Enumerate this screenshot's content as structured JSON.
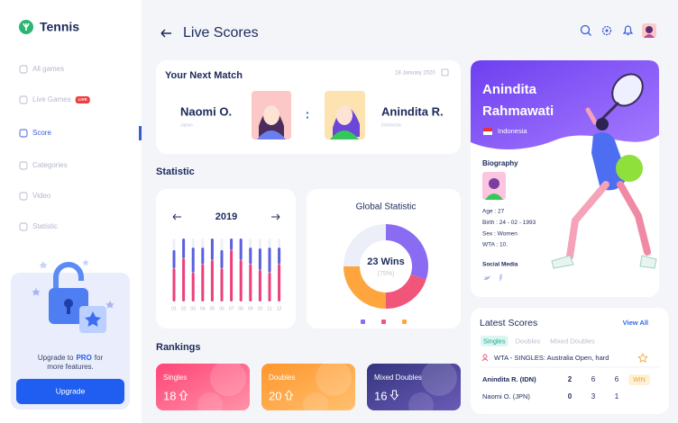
{
  "sidebar": {
    "brand": "Tennis",
    "nav": [
      {
        "label": "All games"
      },
      {
        "label": "Live Games",
        "badge": "LIVE"
      },
      {
        "label": "Score",
        "active": true
      },
      {
        "label": "Categories"
      },
      {
        "label": "Video"
      },
      {
        "label": "Statistic"
      }
    ],
    "upgrade": {
      "lines": [
        [
          "Upgrade to",
          "PRO",
          "for"
        ],
        [
          "more features."
        ]
      ],
      "button": "Upgrade"
    }
  },
  "header": {
    "title": "Live Scores"
  },
  "next_match": {
    "title": "Your Next Match",
    "date": "18 January 2020",
    "separator": ":",
    "players": [
      {
        "name": "Naomi O.",
        "country": "Japan"
      },
      {
        "name": "Anindita R.",
        "country": "Indonesia"
      }
    ]
  },
  "statistic": {
    "title": "Statistic",
    "monthly": {
      "type": "bar",
      "year": "2019",
      "categories": [
        "01",
        "02",
        "03",
        "04",
        "05",
        "06",
        "07",
        "08",
        "09",
        "10",
        "11",
        "12"
      ],
      "series": [
        {
          "color": "#ee3f7d",
          "values": [
            40,
            52,
            35,
            45,
            50,
            40,
            62,
            50,
            45,
            38,
            35,
            45
          ]
        },
        {
          "color": "#5b5fe0",
          "values": [
            22,
            24,
            30,
            20,
            26,
            22,
            14,
            26,
            20,
            26,
            30,
            20
          ]
        }
      ]
    },
    "global": {
      "type": "pie",
      "title": "Global Statistic",
      "center_label": "23 Wins",
      "center_sublabel": "(75%)",
      "segments": [
        {
          "color": "#8a6cf2",
          "value": 30
        },
        {
          "color": "#f2557a",
          "value": 20
        },
        {
          "color": "#ffa53d",
          "value": 25
        }
      ]
    }
  },
  "rankings": {
    "title": "Rankings",
    "items": [
      {
        "label": "Singles",
        "value": 18,
        "trend": "up"
      },
      {
        "label": "Doubles",
        "value": 20,
        "trend": "up"
      },
      {
        "label": "Mixed Doubles",
        "value": 16,
        "trend": "down"
      }
    ]
  },
  "profile": {
    "name_lines": [
      "Anindita",
      "Rahmawati"
    ],
    "country": "Indonesia",
    "biography_title": "Biography",
    "details": [
      "Age : 27",
      "Birth : 24 - 02 - 1993",
      "Sex : Women",
      "WTA : 10."
    ],
    "social_title": "Social Media"
  },
  "latest_scores": {
    "title": "Latest Scores",
    "view_all": "View All",
    "tabs": [
      "Singles",
      "Doubles",
      "Mixed Doubles"
    ],
    "event": "WTA - SINGLES: Australia Open, hard",
    "rows": [
      {
        "player": "Anindita R. (IDN)",
        "sets": [
          2,
          6,
          6
        ],
        "result": "WIN"
      },
      {
        "player": "Naomi O. (JPN)",
        "sets": [
          0,
          3,
          1
        ]
      }
    ]
  }
}
